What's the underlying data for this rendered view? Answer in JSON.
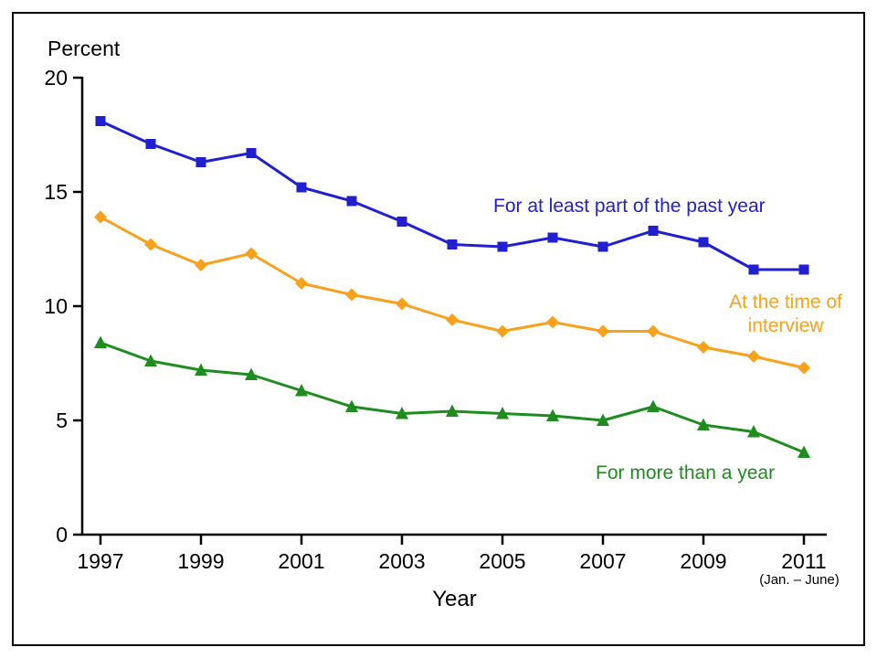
{
  "chart_data": {
    "type": "line",
    "title": "",
    "ylabel": "Percent",
    "xlabel": "Year",
    "x_note": "(Jan. – June)",
    "ylim": [
      0,
      20
    ],
    "yticks": [
      0,
      5,
      10,
      15,
      20
    ],
    "x": [
      1997,
      1998,
      1999,
      2000,
      2001,
      2002,
      2003,
      2004,
      2005,
      2006,
      2007,
      2008,
      2009,
      2010,
      2011
    ],
    "xticks": [
      1997,
      1999,
      2001,
      2003,
      2005,
      2007,
      2009,
      2011
    ],
    "grid": false,
    "legend_position": "inline-annotations",
    "axis_color": "#000000",
    "series": [
      {
        "name": "For at least part of the past year",
        "marker": "square",
        "color": "#2020d0",
        "values": [
          18.1,
          17.1,
          16.3,
          16.7,
          15.2,
          14.6,
          13.7,
          12.7,
          12.6,
          13.0,
          12.6,
          13.3,
          12.8,
          11.6,
          11.6
        ]
      },
      {
        "name": "At the time of interview",
        "marker": "diamond",
        "color": "#f9a11c",
        "values": [
          13.9,
          12.7,
          11.8,
          12.3,
          11.0,
          10.5,
          10.1,
          9.4,
          8.9,
          9.3,
          8.9,
          8.9,
          8.2,
          7.8,
          7.3
        ]
      },
      {
        "name": "For more than a year",
        "marker": "triangle",
        "color": "#1e8c1e",
        "values": [
          8.4,
          7.6,
          7.2,
          7.0,
          6.3,
          5.6,
          5.3,
          5.4,
          5.3,
          5.2,
          5.0,
          5.6,
          4.8,
          4.5,
          3.6
        ]
      }
    ]
  }
}
